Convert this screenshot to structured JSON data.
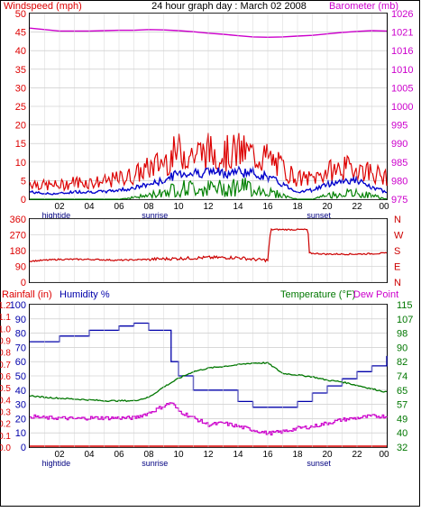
{
  "title": "24 hour graph day : March 02 2008",
  "colors": {
    "wind": "#dd0000",
    "gust_area": "#ff0000",
    "avg_wind": "#0000cc",
    "min_wind": "#008000",
    "barometer": "#cc00cc",
    "direction": "#cc0000",
    "humidity": "#0000aa",
    "temperature": "#007700",
    "dewpoint": "#cc00cc",
    "rainfall": "#dd0000",
    "axis_text": "#000000"
  },
  "chart_data": [
    {
      "type": "line",
      "id": "wind-barometer",
      "left_axis_label": "Windspeed (mph)",
      "right_axis_label": "Barometer (mb)",
      "left_ticks": [
        "0",
        "5",
        "10",
        "15",
        "20",
        "25",
        "30",
        "35",
        "40",
        "45",
        "50"
      ],
      "right_ticks": [
        "975",
        "980",
        "985",
        "990",
        "995",
        "1000",
        "1005",
        "1010",
        "1016",
        "1021",
        "1026"
      ],
      "ylim_left": [
        0,
        50
      ],
      "ylim_right": [
        975,
        1026
      ],
      "x_ticks": [
        "02",
        "04",
        "06",
        "08",
        "10",
        "12",
        "14",
        "16",
        "18",
        "20",
        "22",
        "00"
      ],
      "x_annotations": [
        {
          "label": "hightide",
          "hour": 0.1
        },
        {
          "label": "sunrise",
          "hour": 6.8
        },
        {
          "label": "sunset",
          "hour": 17.9
        }
      ],
      "xlim_hours": [
        0,
        24
      ],
      "series": [
        {
          "key": "barometer",
          "axis": "right",
          "x_hours": [
            0,
            1,
            2,
            3,
            4,
            5,
            6,
            7,
            8,
            9,
            10,
            11,
            12,
            13,
            14,
            15,
            16,
            17,
            18,
            19,
            20,
            21,
            22,
            23,
            24
          ],
          "values": [
            1022,
            1021.6,
            1021.2,
            1021.2,
            1021.2,
            1021.3,
            1021.4,
            1021.4,
            1021.6,
            1021.5,
            1021.3,
            1021,
            1020.6,
            1020.3,
            1019.9,
            1019.6,
            1019.5,
            1019.6,
            1019.8,
            1020,
            1020.4,
            1020.8,
            1021.1,
            1021.3,
            1021.2
          ]
        },
        {
          "key": "max_wind",
          "axis": "left",
          "x_hours": [
            0,
            1,
            2,
            3,
            4,
            5,
            6,
            7,
            8,
            9,
            10,
            11,
            12,
            13,
            14,
            15,
            16,
            17,
            18,
            19,
            20,
            21,
            22,
            23,
            24
          ],
          "values": [
            5,
            4,
            4,
            5,
            5,
            5,
            6,
            7,
            9,
            11,
            14,
            13,
            14,
            13,
            14,
            13,
            12,
            9,
            6,
            6,
            8,
            9,
            9,
            8,
            6
          ]
        },
        {
          "key": "avg_wind",
          "axis": "left",
          "x_hours": [
            0,
            1,
            2,
            3,
            4,
            5,
            6,
            7,
            8,
            9,
            10,
            11,
            12,
            13,
            14,
            15,
            16,
            17,
            18,
            19,
            20,
            21,
            22,
            23,
            24
          ],
          "values": [
            2,
            1.5,
            1.5,
            2,
            2,
            2,
            2.5,
            3,
            4,
            5,
            7,
            7,
            7.5,
            7,
            7.5,
            7,
            6,
            4,
            2,
            2.5,
            4,
            5,
            5,
            3,
            2
          ]
        },
        {
          "key": "min_wind",
          "axis": "left",
          "x_hours": [
            0,
            1,
            2,
            3,
            4,
            5,
            6,
            7,
            8,
            9,
            10,
            11,
            12,
            13,
            14,
            15,
            16,
            17,
            18,
            19,
            20,
            21,
            22,
            23,
            24
          ],
          "values": [
            0,
            0,
            0,
            0,
            0,
            0,
            0,
            0.5,
            1,
            2,
            3,
            3,
            3,
            3,
            3.5,
            3,
            2,
            1,
            0,
            0,
            1,
            1.5,
            1.5,
            1,
            0
          ]
        }
      ]
    },
    {
      "type": "line",
      "id": "wind-direction",
      "left_ticks": [
        "0",
        "90",
        "180",
        "270",
        "360"
      ],
      "right_ticks": [
        "N",
        "E",
        "S",
        "W",
        "N"
      ],
      "ylim_left": [
        0,
        360
      ],
      "xlim_hours": [
        0,
        24
      ],
      "series": [
        {
          "key": "direction",
          "x_hours": [
            0,
            2,
            4,
            6,
            8,
            10,
            12,
            14,
            15,
            16,
            16.2,
            18,
            18.7,
            18.8,
            20,
            22,
            24
          ],
          "values": [
            120,
            130,
            130,
            125,
            130,
            135,
            140,
            140,
            130,
            125,
            300,
            300,
            300,
            165,
            160,
            160,
            165
          ]
        }
      ]
    },
    {
      "type": "line",
      "id": "temp-humidity",
      "left_axis_label_1": "Rainfall (in)",
      "left_axis_label_2": "Humidity %",
      "right_axis_label_1": "Temperature (°F)",
      "right_axis_label_2": "Dew Point",
      "rain_ticks": [
        "0.0",
        "0.1",
        "0.2",
        "0.3",
        "0.4",
        "0.5",
        "0.6",
        "0.7",
        "0.8",
        "0.9",
        "1.0",
        "1.1",
        "1.2"
      ],
      "humidity_ticks": [
        "0",
        "10",
        "20",
        "30",
        "40",
        "50",
        "60",
        "70",
        "80",
        "90",
        "100"
      ],
      "temp_ticks": [
        "32",
        "40",
        "49",
        "57",
        "65",
        "74",
        "82",
        "90",
        "98",
        "107",
        "115"
      ],
      "ylim_humidity": [
        0,
        100
      ],
      "ylim_temp": [
        32,
        115
      ],
      "ylim_rain": [
        0,
        1.2
      ],
      "x_ticks": [
        "02",
        "04",
        "06",
        "08",
        "10",
        "12",
        "14",
        "16",
        "18",
        "20",
        "22",
        "00"
      ],
      "x_annotations": [
        {
          "label": "hightide",
          "hour": 0.1
        },
        {
          "label": "sunrise",
          "hour": 6.8
        },
        {
          "label": "sunset",
          "hour": 17.9
        }
      ],
      "xlim_hours": [
        0,
        24
      ],
      "series": [
        {
          "key": "humidity",
          "axis": "humidity",
          "step": true,
          "x_hours": [
            0,
            2,
            4,
            6,
            7,
            8,
            9.5,
            10,
            11,
            14,
            15,
            17,
            18,
            19,
            20,
            21,
            22,
            23,
            24
          ],
          "values": [
            74,
            78,
            82,
            85,
            87,
            82,
            60,
            50,
            40,
            32,
            28,
            28,
            32,
            38,
            43,
            48,
            53,
            57,
            64
          ]
        },
        {
          "key": "temperature",
          "axis": "temp",
          "x_hours": [
            0,
            1,
            2,
            3,
            4,
            5,
            6,
            7,
            8,
            9,
            10,
            11,
            12,
            13,
            14,
            15,
            16,
            17,
            18,
            19,
            20,
            21,
            22,
            23,
            24
          ],
          "values": [
            62,
            61,
            60.5,
            60,
            59.5,
            59,
            59,
            59,
            61,
            67,
            72,
            76,
            78,
            79,
            80,
            81,
            81,
            75,
            74,
            73,
            71,
            70,
            68,
            66,
            64
          ]
        },
        {
          "key": "dewpoint",
          "axis": "temp",
          "x_hours": [
            0,
            1,
            2,
            3,
            4,
            5,
            6,
            7,
            8,
            9,
            9.5,
            10,
            11,
            12,
            13,
            14,
            15,
            16,
            17,
            18,
            19,
            20,
            21,
            22,
            23,
            24
          ],
          "values": [
            50,
            49,
            49,
            48.5,
            49,
            49,
            49,
            49,
            52,
            56,
            58,
            53,
            49,
            45,
            46,
            44,
            42,
            40,
            41,
            43,
            44,
            46,
            48,
            49,
            50,
            50
          ]
        },
        {
          "key": "rainfall",
          "axis": "rain",
          "x_hours": [
            0,
            24
          ],
          "values": [
            0,
            0
          ]
        }
      ]
    }
  ]
}
